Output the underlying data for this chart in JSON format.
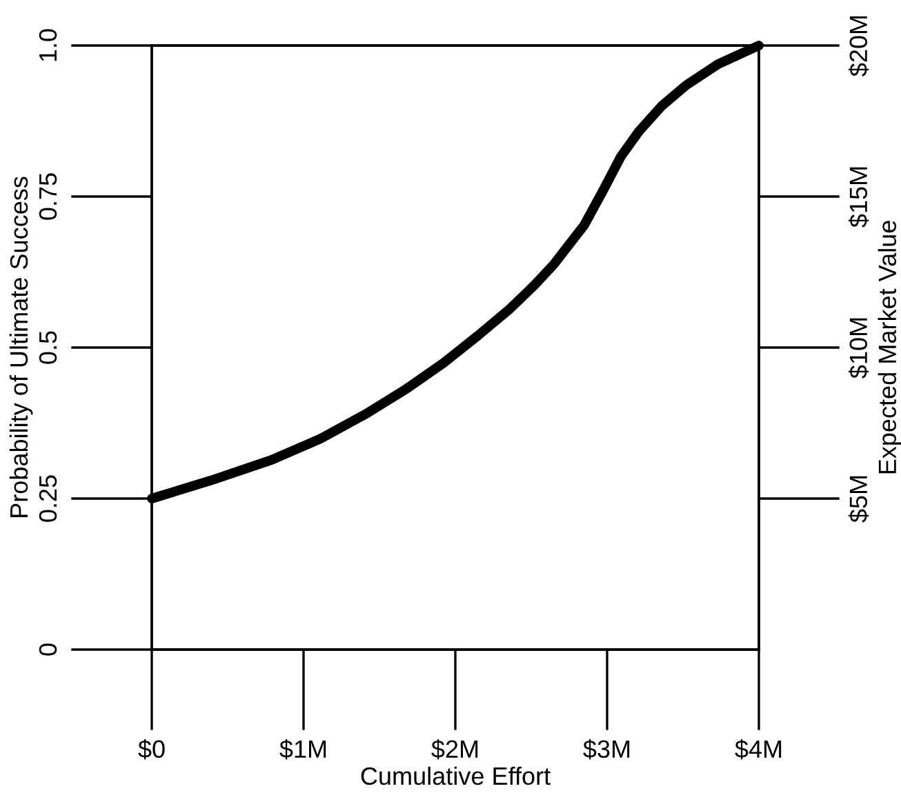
{
  "chart_data": {
    "type": "line",
    "xlabel": "Cumulative Effort",
    "ylabel": "Probability of Ultimate Success",
    "y2label": "Expected Market Value",
    "x": [
      0,
      0.39,
      0.79,
      1.11,
      1.41,
      1.68,
      1.92,
      2.15,
      2.35,
      2.52,
      2.65,
      2.85,
      2.98,
      3.09,
      3.21,
      3.36,
      3.52,
      3.73,
      4
    ],
    "series": [
      {
        "color": "#000000",
        "values": [
          0.25,
          0.28,
          0.314,
          0.349,
          0.39,
          0.432,
          0.474,
          0.52,
          0.562,
          0.603,
          0.638,
          0.703,
          0.763,
          0.816,
          0.858,
          0.9,
          0.934,
          0.969,
          1.0
        ]
      }
    ],
    "xlim": [
      0,
      4
    ],
    "xticks": [
      {
        "value": 0,
        "label": "$0"
      },
      {
        "value": 1,
        "label": "$1M"
      },
      {
        "value": 2,
        "label": "$2M"
      },
      {
        "value": 3,
        "label": "$3M"
      },
      {
        "value": 4,
        "label": "$4M"
      }
    ],
    "ylim": [
      0,
      1
    ],
    "yticks": [
      0,
      0.25,
      0.5,
      0.75,
      {
        "value": 1,
        "label": "1.0"
      }
    ],
    "y2lim": [
      0,
      20
    ],
    "y2ticks": [
      {
        "value": 5,
        "label": "$5M"
      },
      {
        "value": 10,
        "label": "$10M"
      },
      {
        "value": 15,
        "label": "$15M"
      },
      {
        "value": 20,
        "label": "$20M"
      }
    ],
    "grid": false,
    "legend": false,
    "marker": "none",
    "line_style": "solid"
  }
}
